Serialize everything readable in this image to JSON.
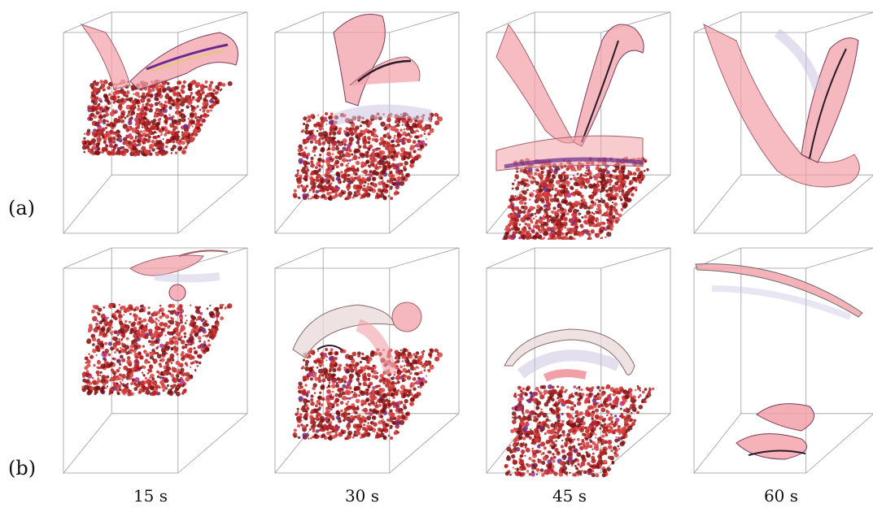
{
  "rows": [
    {
      "label": "(a)"
    },
    {
      "label": "(b)"
    }
  ],
  "columns": [
    {
      "time": "15 s"
    },
    {
      "time": "30 s"
    },
    {
      "time": "45 s"
    },
    {
      "time": "60 s"
    }
  ],
  "colors": {
    "box_edge": "#9a9a9a",
    "particles_dark": "#7a1010",
    "particles_mid": "#b52020",
    "particles_light": "#d64040",
    "sheet_pink": "#f2a0a8",
    "sheet_edge": "#a0606a",
    "vortex_purple": "#6a2a8a",
    "vortex_magenta": "#b0308a",
    "highlight_yellow": "#d8d060",
    "mist_lavender": "#c8c0e0"
  }
}
